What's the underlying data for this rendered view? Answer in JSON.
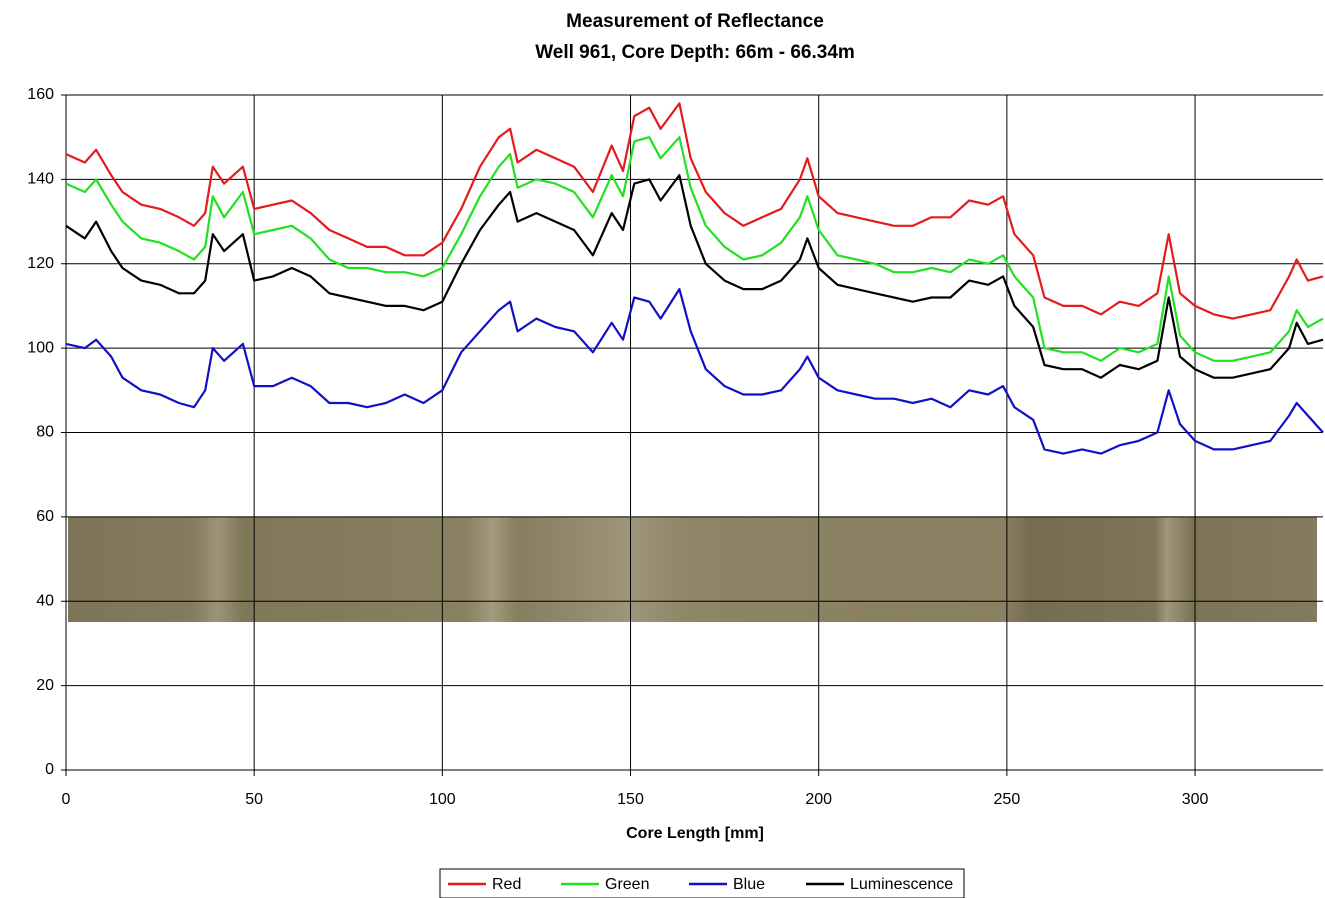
{
  "chart_data": {
    "type": "line",
    "title": "Measurement of Reflectance",
    "subtitle": "Well 961, Core Depth: 66m - 66.34m",
    "x_label": "Core Length [mm]",
    "xlim": [
      0,
      334
    ],
    "ylim": [
      0,
      160
    ],
    "xticks": [
      0,
      50,
      100,
      150,
      200,
      250,
      300
    ],
    "yticks": [
      0,
      20,
      40,
      60,
      80,
      100,
      120,
      140,
      160
    ],
    "grid": true,
    "legend": "bottom",
    "x": [
      0,
      5,
      8,
      12,
      15,
      20,
      25,
      30,
      34,
      37,
      39,
      42,
      47,
      50,
      55,
      60,
      65,
      70,
      75,
      80,
      85,
      90,
      95,
      100,
      105,
      110,
      115,
      118,
      120,
      125,
      130,
      135,
      140,
      145,
      148,
      151,
      155,
      158,
      163,
      166,
      170,
      175,
      180,
      185,
      190,
      195,
      197,
      200,
      205,
      210,
      215,
      220,
      225,
      230,
      235,
      240,
      245,
      249,
      252,
      257,
      260,
      265,
      270,
      275,
      280,
      285,
      290,
      293,
      296,
      300,
      305,
      310,
      315,
      320,
      325,
      327,
      330,
      334
    ],
    "series": [
      {
        "name": "Red",
        "color": "#e41a1c",
        "values": [
          146,
          144,
          147,
          141,
          137,
          134,
          133,
          131,
          129,
          132,
          143,
          139,
          143,
          133,
          134,
          135,
          132,
          128,
          126,
          124,
          124,
          122,
          122,
          125,
          133,
          143,
          150,
          152,
          144,
          147,
          145,
          143,
          137,
          148,
          142,
          155,
          157,
          152,
          158,
          145,
          137,
          132,
          129,
          131,
          133,
          140,
          145,
          136,
          132,
          131,
          130,
          129,
          129,
          131,
          131,
          135,
          134,
          136,
          127,
          122,
          112,
          110,
          110,
          108,
          111,
          110,
          113,
          127,
          113,
          110,
          108,
          107,
          108,
          109,
          117,
          121,
          116,
          117
        ]
      },
      {
        "name": "Green",
        "color": "#22e022",
        "values": [
          139,
          137,
          140,
          134,
          130,
          126,
          125,
          123,
          121,
          124,
          136,
          131,
          137,
          127,
          128,
          129,
          126,
          121,
          119,
          119,
          118,
          118,
          117,
          119,
          127,
          136,
          143,
          146,
          138,
          140,
          139,
          137,
          131,
          141,
          136,
          149,
          150,
          145,
          150,
          138,
          129,
          124,
          121,
          122,
          125,
          131,
          136,
          128,
          122,
          121,
          120,
          118,
          118,
          119,
          118,
          121,
          120,
          122,
          117,
          112,
          100,
          99,
          99,
          97,
          100,
          99,
          101,
          117,
          103,
          99,
          97,
          97,
          98,
          99,
          104,
          109,
          105,
          107
        ]
      },
      {
        "name": "Blue",
        "color": "#1010c8",
        "values": [
          101,
          100,
          102,
          98,
          93,
          90,
          89,
          87,
          86,
          90,
          100,
          97,
          101,
          91,
          91,
          93,
          91,
          87,
          87,
          86,
          87,
          89,
          87,
          90,
          99,
          104,
          109,
          111,
          104,
          107,
          105,
          104,
          99,
          106,
          102,
          112,
          111,
          107,
          114,
          104,
          95,
          91,
          89,
          89,
          90,
          95,
          98,
          93,
          90,
          89,
          88,
          88,
          87,
          88,
          86,
          90,
          89,
          91,
          86,
          83,
          76,
          75,
          76,
          75,
          77,
          78,
          80,
          90,
          82,
          78,
          76,
          76,
          77,
          78,
          84,
          87,
          84,
          80
        ]
      },
      {
        "name": "Luminescence",
        "color": "#000000",
        "values": [
          129,
          126,
          130,
          123,
          119,
          116,
          115,
          113,
          113,
          116,
          127,
          123,
          127,
          116,
          117,
          119,
          117,
          113,
          112,
          111,
          110,
          110,
          109,
          111,
          120,
          128,
          134,
          137,
          130,
          132,
          130,
          128,
          122,
          132,
          128,
          139,
          140,
          135,
          141,
          129,
          120,
          116,
          114,
          114,
          116,
          121,
          126,
          119,
          115,
          114,
          113,
          112,
          111,
          112,
          112,
          116,
          115,
          117,
          110,
          105,
          96,
          95,
          95,
          93,
          96,
          95,
          97,
          112,
          98,
          95,
          93,
          93,
          94,
          95,
          100,
          106,
          101,
          102
        ]
      }
    ]
  }
}
